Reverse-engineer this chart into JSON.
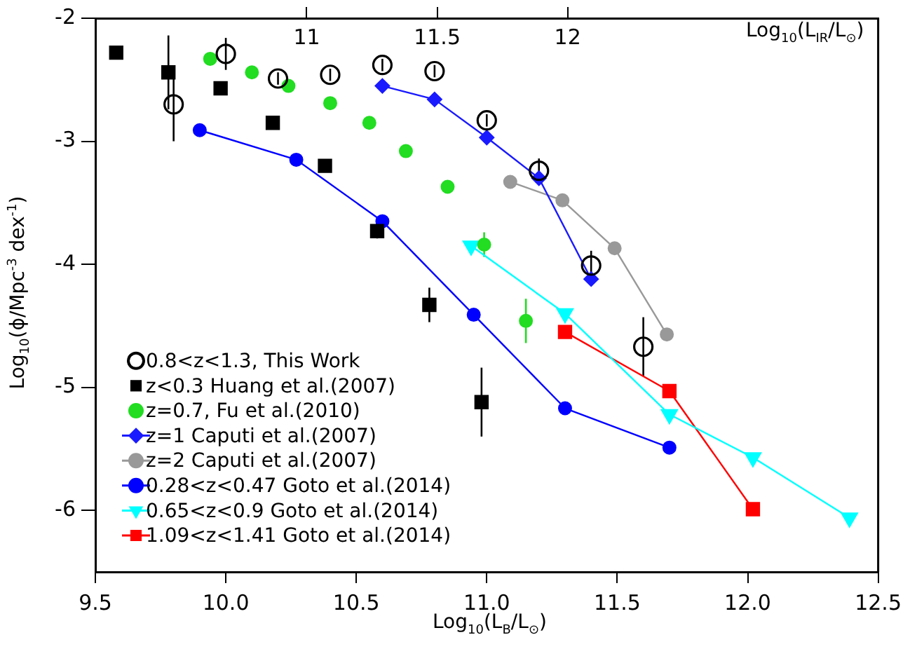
{
  "chart_data": {
    "type": "scatter",
    "xlabel": "Log$_{10}$(L$_{B}$/L$_{⊙}$)",
    "ylabel": "Log$_{10}$(ϕ/Mpc$^{-3}$ dex$^{-1}$)",
    "x2label": "Log$_{10}$(L$_{IR}$/L$_{⊙}$)",
    "xlim": [
      9.5,
      12.5
    ],
    "xticks": [
      9.5,
      {
        "value": 10,
        "label": "10.0"
      },
      10.5,
      {
        "value": 11,
        "label": "11.0"
      },
      11.5,
      {
        "value": 12,
        "label": "12.0"
      },
      12.5
    ],
    "x2lim": [
      10.19,
      13.19
    ],
    "x2ticks": [
      11,
      11.5,
      12
    ],
    "ylim": [
      -6.5,
      -2
    ],
    "yticks": [
      -6,
      -5,
      -4,
      -3,
      -2
    ],
    "grid": false,
    "legend": "bottom left",
    "series": [
      {
        "name": "0.8<z<1.3, This Work",
        "type": "scatter",
        "marker": "circle-open",
        "color": "#000000",
        "x": [
          9.8,
          10.0,
          10.2,
          10.4,
          10.6,
          10.8,
          11.0,
          11.2,
          11.4,
          11.6
        ],
        "values": [
          -2.7,
          -2.29,
          -2.49,
          -2.46,
          -2.38,
          -2.43,
          -2.83,
          -3.24,
          -4.01,
          -4.67
        ],
        "errors": [
          0.3,
          0.13,
          0.05,
          0.05,
          0.05,
          0.05,
          0.05,
          0.1,
          0.12,
          0.24
        ]
      },
      {
        "name": "z<0.3 Huang et al.(2007)",
        "type": "scatter",
        "marker": "square",
        "color": "#000000",
        "x": [
          9.58,
          9.78,
          9.98,
          10.18,
          10.38,
          10.58,
          10.78,
          10.98
        ],
        "values": [
          -2.28,
          -2.44,
          -2.57,
          -2.85,
          -3.2,
          -3.73,
          -4.33,
          -5.12
        ],
        "errors": [
          null,
          0.3,
          null,
          null,
          null,
          0.06,
          0.14,
          0.28
        ]
      },
      {
        "name": "z=0.7, Fu et al.(2010)",
        "type": "scatter",
        "marker": "circle",
        "color": "#22dd22",
        "x": [
          9.94,
          10.1,
          10.24,
          10.4,
          10.55,
          10.69,
          10.85,
          10.99,
          11.15
        ],
        "values": [
          -2.33,
          -2.44,
          -2.55,
          -2.69,
          -2.85,
          -3.08,
          -3.37,
          -3.84,
          -4.46
        ],
        "errors": [
          null,
          null,
          null,
          null,
          null,
          null,
          null,
          0.1,
          0.18
        ]
      },
      {
        "name": "z=1 Caputi et al.(2007)",
        "type": "line",
        "marker": "diamond",
        "color": "#1a1aff",
        "x": [
          10.6,
          10.8,
          11.0,
          11.2,
          11.4
        ],
        "values": [
          -2.55,
          -2.66,
          -2.97,
          -3.3,
          -4.12
        ]
      },
      {
        "name": "z=2 Caputi et al.(2007)",
        "type": "line",
        "marker": "circle",
        "color": "#999999",
        "x": [
          11.09,
          11.29,
          11.49,
          11.69
        ],
        "values": [
          -3.33,
          -3.48,
          -3.87,
          -4.57
        ]
      },
      {
        "name": "0.28<z<0.47 Goto et al.(2014)",
        "type": "line",
        "marker": "circle",
        "color": "#0000ff",
        "x": [
          9.9,
          10.27,
          10.6,
          10.95,
          11.3,
          11.7
        ],
        "values": [
          -2.91,
          -3.15,
          -3.65,
          -4.41,
          -5.17,
          -5.49
        ]
      },
      {
        "name": "0.65<z<0.9 Goto et al.(2014)",
        "type": "line",
        "marker": "triangle-down",
        "color": "#00ffff",
        "x": [
          10.94,
          11.3,
          11.7,
          12.02,
          12.39
        ],
        "values": [
          -3.85,
          -4.4,
          -5.22,
          -5.57,
          -6.06
        ]
      },
      {
        "name": "1.09<z<1.41 Goto et al.(2014)",
        "type": "line",
        "marker": "square",
        "color": "#ff0000",
        "x": [
          11.3,
          11.7,
          12.02
        ],
        "values": [
          -4.55,
          -5.03,
          -5.99
        ]
      }
    ]
  }
}
